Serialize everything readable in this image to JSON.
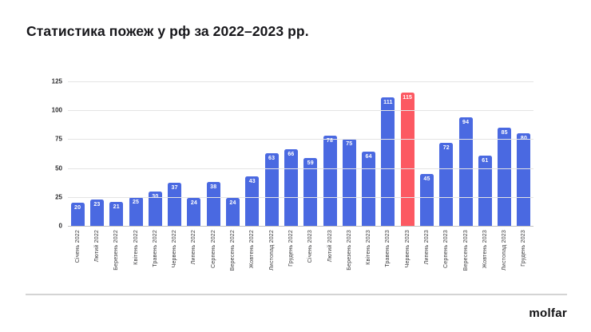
{
  "title": "Статистика пожеж у рф за 2022–2023 рр.",
  "footer": {
    "logo_text": "molfar"
  },
  "chart_data": {
    "type": "bar",
    "title": "Статистика пожеж у рф за 2022–2023 рр.",
    "categories": [
      "Січень 2022",
      "Лютий 2022",
      "Березень 2022",
      "Квітень 2022",
      "Травень 2022",
      "Червень 2022",
      "Липень 2022",
      "Серпень 2022",
      "Вересень 2022",
      "Жовтень 2022",
      "Листопад 2022",
      "Грудень 2022",
      "Січень 2023",
      "Лютий 2023",
      "Березень 2023",
      "Квітень 2023",
      "Травень 2023",
      "Червень 2023",
      "Липень 2023",
      "Серпень 2023",
      "Вересень 2023",
      "Жовтень 2023",
      "Листопад 2023",
      "Грудень 2023"
    ],
    "values": [
      20,
      23,
      21,
      25,
      30,
      37,
      24,
      38,
      24,
      43,
      63,
      66,
      59,
      78,
      75,
      64,
      111,
      115,
      45,
      72,
      94,
      61,
      85,
      80
    ],
    "data_labels_visible": true,
    "highlight_index": 17,
    "highlight_category": "Червень 2023",
    "bar_color": "#4a69e1",
    "highlight_color": "#fc5962",
    "ylim": [
      0,
      125
    ],
    "yticks": [
      0,
      25,
      50,
      75,
      100,
      125
    ],
    "grid": true,
    "legend": false,
    "xlabel": "",
    "ylabel": ""
  }
}
